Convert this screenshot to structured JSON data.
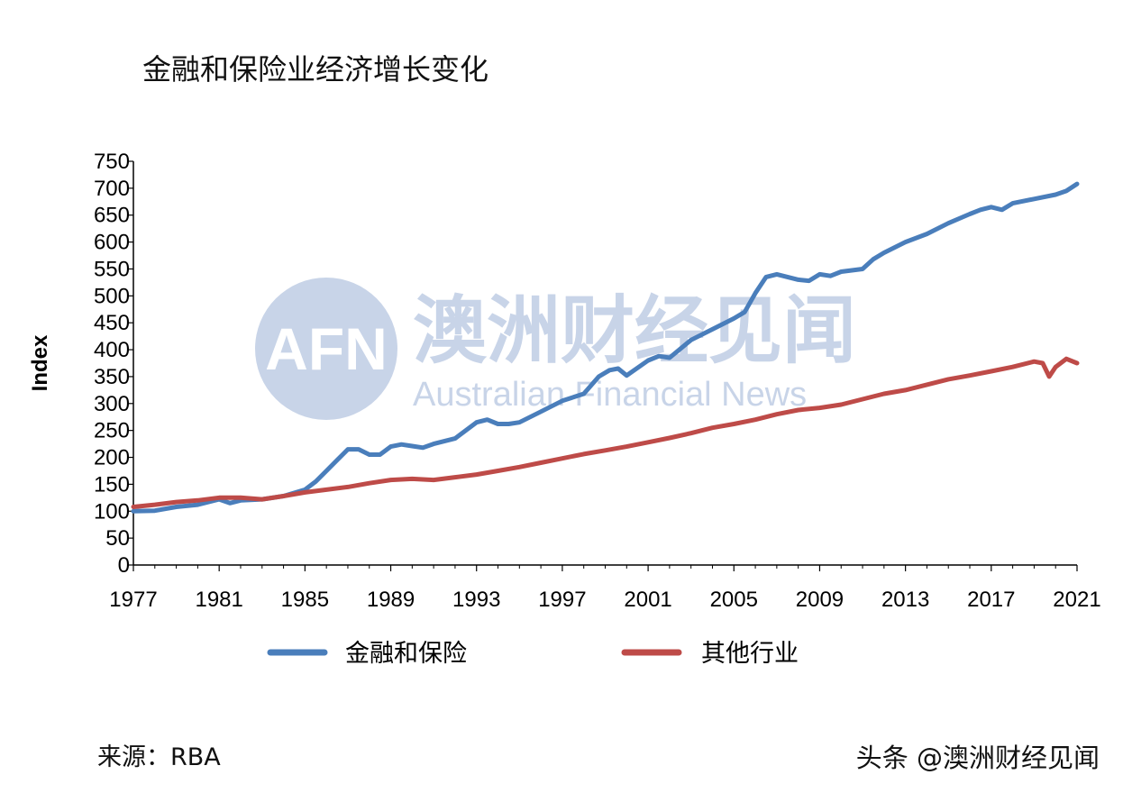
{
  "title": "金融和保险业经济增长变化",
  "source": "来源：RBA",
  "credit": "头条 @澳洲财经见闻",
  "watermark": {
    "logo": "AFN",
    "name_cn": "澳洲财经见闻",
    "name_en": "Australian Financial News"
  },
  "chart_data": {
    "type": "line",
    "title": "金融和保险业经济增长变化",
    "xlabel": "",
    "ylabel": "Index",
    "xlim": [
      1977,
      2021
    ],
    "ylim": [
      0,
      750
    ],
    "x_ticks": [
      "1977",
      "1981",
      "1985",
      "1989",
      "1993",
      "1997",
      "2001",
      "2005",
      "2009",
      "2013",
      "2017",
      "2021"
    ],
    "y_ticks": [
      "0",
      "50",
      "100",
      "150",
      "200",
      "250",
      "300",
      "350",
      "400",
      "450",
      "500",
      "550",
      "600",
      "650",
      "700",
      "750"
    ],
    "legend_position": "bottom",
    "grid": false,
    "series": [
      {
        "name": "金融和保险",
        "color": "#4a7ebb",
        "x": [
          1977,
          1978,
          1979,
          1980,
          1981,
          1981.5,
          1982,
          1983,
          1984,
          1985,
          1985.5,
          1986,
          1986.5,
          1987,
          1987.5,
          1988,
          1988.5,
          1989,
          1989.5,
          1990,
          1990.5,
          1991,
          1992,
          1993,
          1993.5,
          1994,
          1994.5,
          1995,
          1996,
          1997,
          1998,
          1998.7,
          1999.2,
          1999.6,
          2000,
          2001,
          2001.5,
          2002,
          2003,
          2004,
          2005,
          2005.5,
          2006,
          2006.5,
          2007,
          2008,
          2008.5,
          2009,
          2009.5,
          2010,
          2011,
          2011.5,
          2012,
          2013,
          2014,
          2015,
          2016,
          2016.5,
          2017,
          2017.5,
          2018,
          2019,
          2020,
          2020.5,
          2021
        ],
        "values": [
          100,
          101,
          108,
          112,
          122,
          115,
          120,
          122,
          128,
          140,
          155,
          175,
          195,
          215,
          215,
          205,
          205,
          220,
          224,
          221,
          218,
          225,
          235,
          265,
          270,
          262,
          262,
          265,
          285,
          305,
          318,
          350,
          362,
          365,
          352,
          380,
          388,
          385,
          418,
          438,
          458,
          470,
          505,
          535,
          540,
          530,
          528,
          540,
          537,
          545,
          550,
          568,
          580,
          600,
          615,
          635,
          652,
          660,
          665,
          660,
          672,
          680,
          688,
          695,
          708
        ]
      },
      {
        "name": "其他行业",
        "color": "#be4b48",
        "x": [
          1977,
          1978,
          1979,
          1980,
          1981,
          1982,
          1983,
          1984,
          1985,
          1986,
          1987,
          1988,
          1989,
          1990,
          1991,
          1992,
          1993,
          1994,
          1995,
          1996,
          1997,
          1998,
          1999,
          2000,
          2001,
          2002,
          2003,
          2004,
          2005,
          2006,
          2007,
          2008,
          2009,
          2010,
          2011,
          2012,
          2013,
          2014,
          2015,
          2016,
          2017,
          2018,
          2019,
          2019.4,
          2019.7,
          2020,
          2020.5,
          2021
        ],
        "values": [
          108,
          112,
          117,
          120,
          125,
          125,
          122,
          128,
          135,
          140,
          145,
          152,
          158,
          160,
          158,
          163,
          168,
          175,
          182,
          190,
          198,
          206,
          213,
          220,
          228,
          236,
          245,
          255,
          262,
          270,
          280,
          288,
          292,
          298,
          308,
          318,
          325,
          335,
          345,
          352,
          360,
          368,
          378,
          375,
          350,
          368,
          383,
          375
        ]
      }
    ]
  }
}
